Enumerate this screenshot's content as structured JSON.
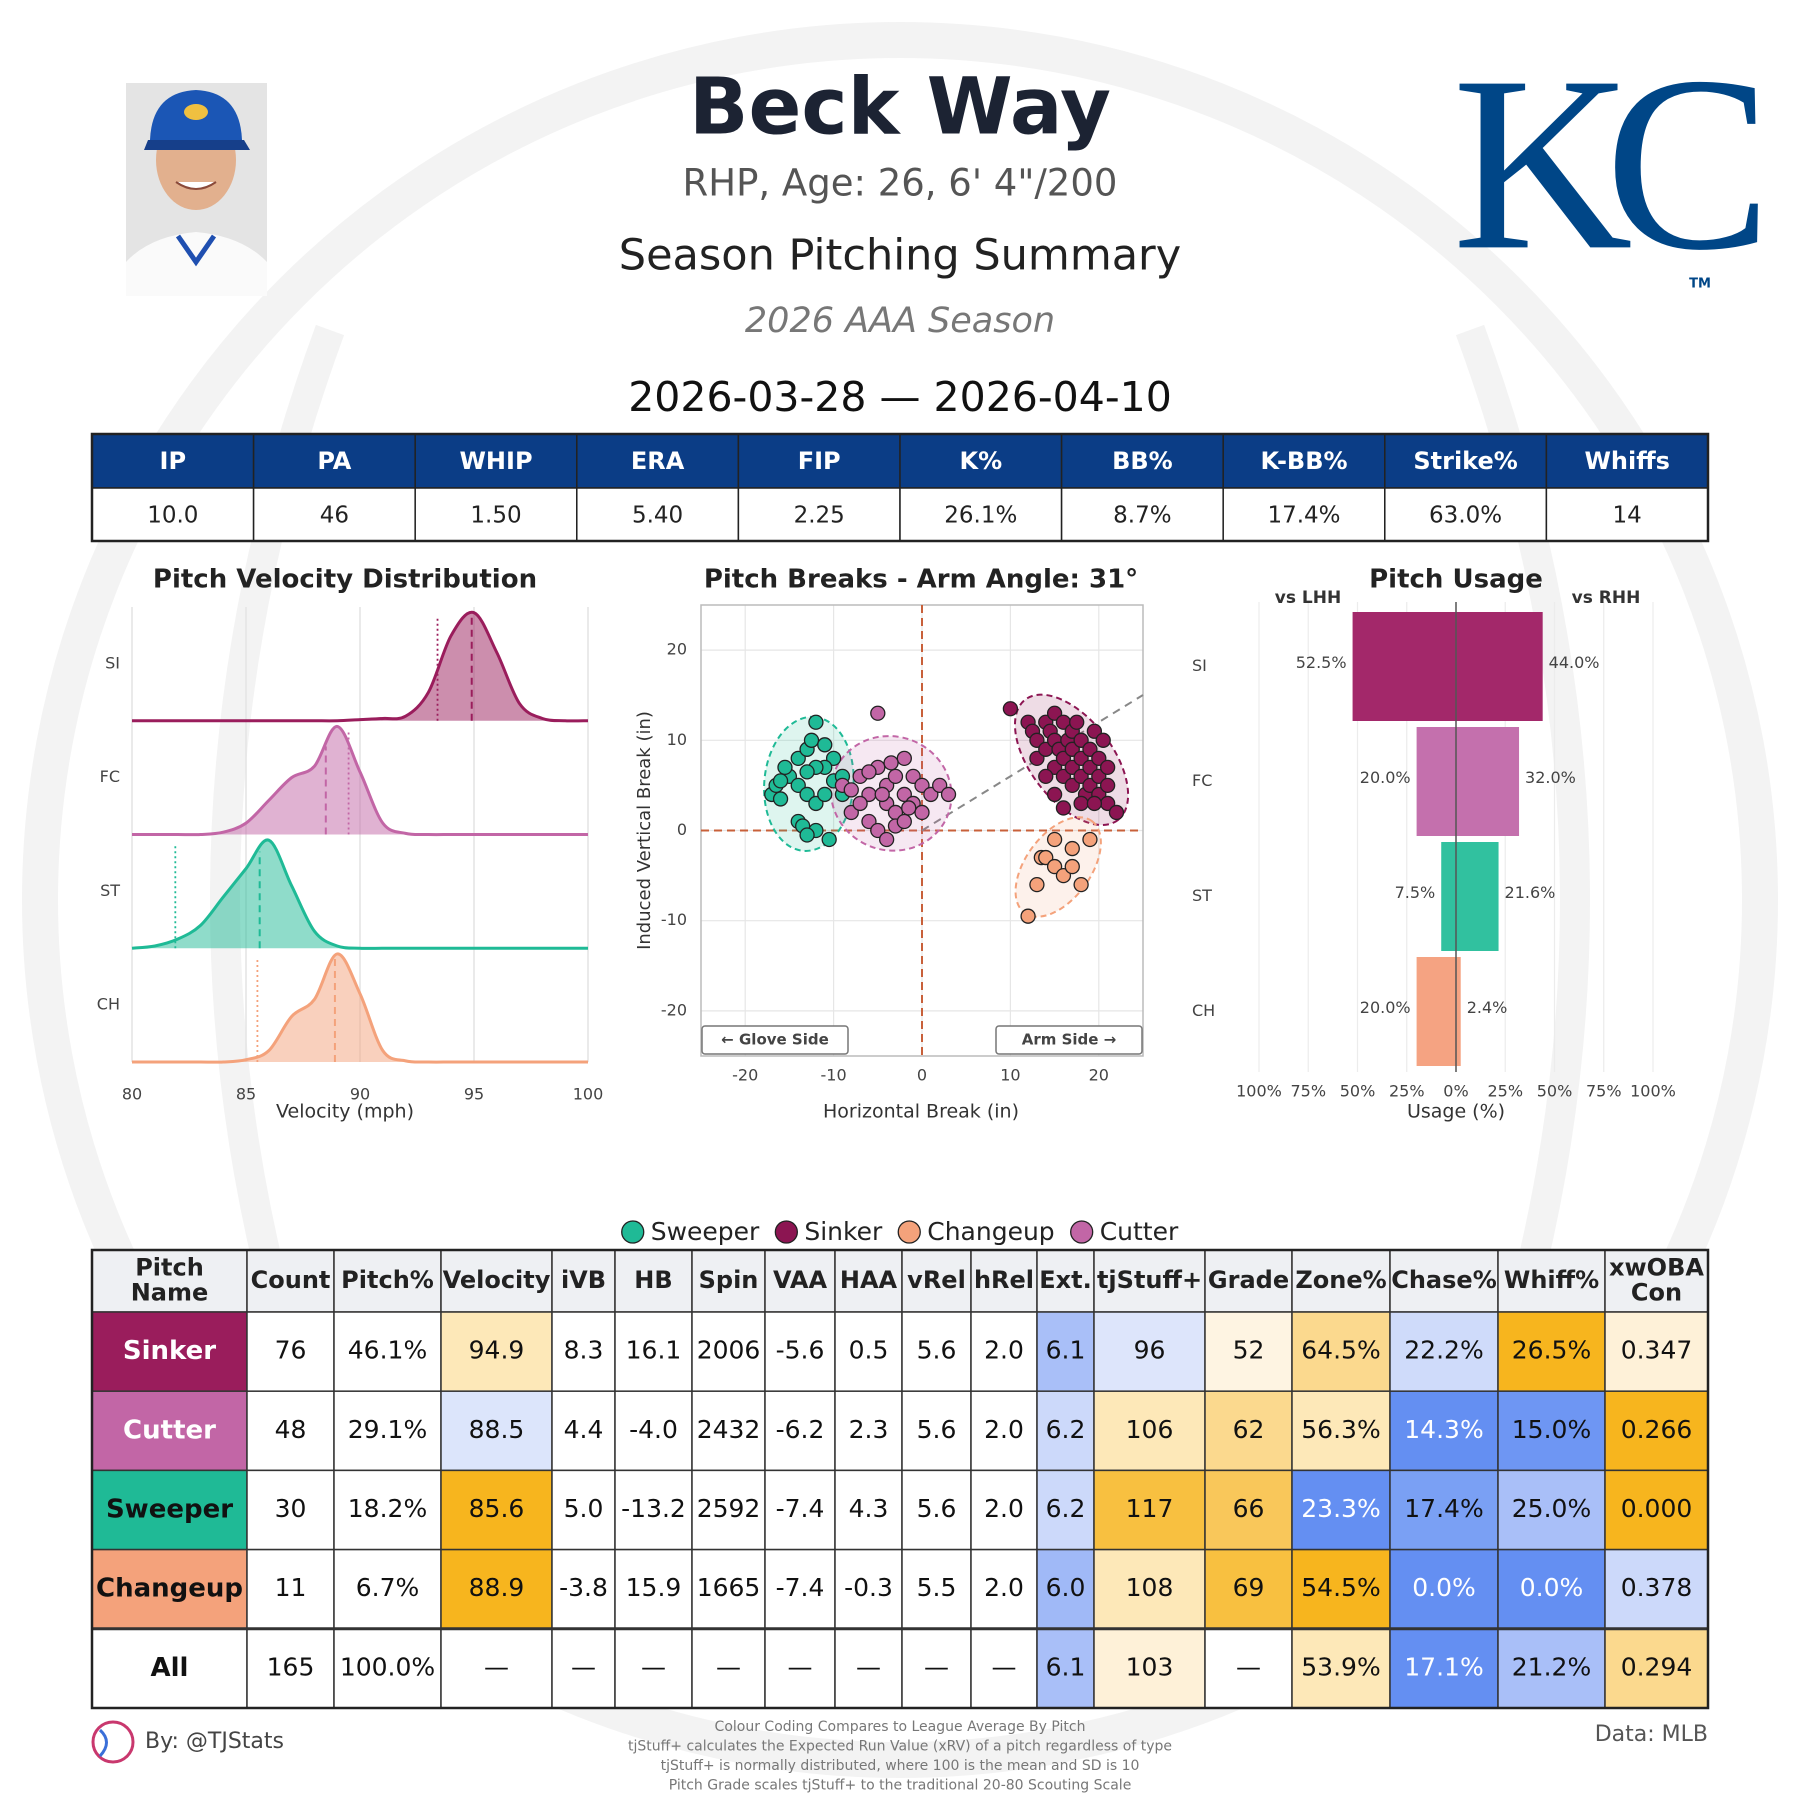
{
  "header": {
    "name": "Beck Way",
    "bio": "RHP, Age: 26, 6' 4\"/200",
    "title": "Season Pitching Summary",
    "season": "2026 AAA Season",
    "dates": "2026-03-28 — 2026-04-10",
    "logo": "KC",
    "logo_mark": "TM"
  },
  "stats_table": {
    "headers": [
      "IP",
      "PA",
      "WHIP",
      "ERA",
      "FIP",
      "K%",
      "BB%",
      "K-BB%",
      "Strike%",
      "Whiffs"
    ],
    "values": [
      "10.0",
      "46",
      "1.50",
      "5.40",
      "2.25",
      "26.1%",
      "8.7%",
      "17.4%",
      "63.0%",
      "14"
    ]
  },
  "chart_data": [
    {
      "type": "ridgeline",
      "title": "Pitch Velocity Distribution",
      "xlabel": "Velocity (mph)",
      "xlim": [
        80,
        100
      ],
      "xticks": [
        80,
        85,
        90,
        95,
        100
      ],
      "grid": true,
      "x": [
        80,
        81,
        82,
        83,
        84,
        85,
        86,
        87,
        88,
        89,
        90,
        91,
        92,
        93,
        94,
        95,
        96,
        97,
        98,
        99,
        100
      ],
      "series": [
        {
          "name": "SI",
          "color": "#9a1d5c",
          "mean": 94.9,
          "reference": 93.4,
          "values": [
            0,
            0,
            0,
            0,
            0,
            0,
            0,
            0,
            0,
            0,
            0.01,
            0.02,
            0.04,
            0.25,
            0.75,
            0.95,
            0.6,
            0.15,
            0.02,
            0,
            0
          ]
        },
        {
          "name": "FC",
          "color": "#c266a6",
          "mean": 88.5,
          "reference": 89.5,
          "values": [
            0,
            0,
            0,
            0,
            0.02,
            0.1,
            0.3,
            0.5,
            0.6,
            0.95,
            0.55,
            0.1,
            0.01,
            0,
            0,
            0,
            0,
            0,
            0,
            0,
            0
          ]
        },
        {
          "name": "ST",
          "color": "#1fba96",
          "mean": 85.6,
          "reference": 81.9,
          "values": [
            0,
            0.02,
            0.08,
            0.2,
            0.45,
            0.7,
            0.95,
            0.55,
            0.15,
            0.02,
            0,
            0,
            0,
            0,
            0,
            0,
            0,
            0,
            0,
            0,
            0
          ]
        },
        {
          "name": "CH",
          "color": "#f4a27b",
          "mean": 88.9,
          "reference": 85.5,
          "values": [
            0,
            0,
            0,
            0,
            0,
            0.02,
            0.1,
            0.4,
            0.55,
            0.95,
            0.6,
            0.1,
            0.01,
            0,
            0,
            0,
            0,
            0,
            0,
            0,
            0
          ]
        }
      ]
    },
    {
      "type": "scatter",
      "title": "Pitch Breaks - Arm Angle: 31°",
      "xlabel": "Horizontal Break (in)",
      "ylabel": "Induced Vertical Break (in)",
      "arm_angle": 31,
      "xlim": [
        -25,
        25
      ],
      "ylim": [
        -25,
        25
      ],
      "xticks": [
        -20,
        -10,
        0,
        10,
        20
      ],
      "yticks": [
        -20,
        -10,
        0,
        10,
        20
      ],
      "grid": true,
      "annotations": [
        "← Glove Side",
        "Arm Side →"
      ],
      "series": [
        {
          "name": "Sweeper",
          "color": "#1fba96",
          "x": [
            -17,
            -16,
            -16.5,
            -15,
            -15.5,
            -14,
            -13,
            -12,
            -12.5,
            -11,
            -10,
            -11,
            -12,
            -13,
            -14,
            -13,
            -12,
            -11,
            -10,
            -9,
            -14,
            -13.5,
            -12,
            -10.5,
            -9,
            -16,
            -13
          ],
          "y": [
            4,
            3.5,
            5,
            6,
            7,
            8,
            9,
            12,
            10,
            9.5,
            8,
            7,
            7,
            6.5,
            5,
            4,
            3,
            4,
            5.5,
            6,
            1,
            0.5,
            0,
            -1,
            4,
            5.5,
            -0.5
          ]
        },
        {
          "name": "Sinker",
          "color": "#8c1552",
          "x": [
            10,
            12,
            12.5,
            13,
            13,
            14,
            14,
            14.5,
            15,
            15,
            15,
            15.5,
            16,
            16,
            16,
            16.5,
            17,
            17,
            17,
            17,
            17.5,
            18,
            18,
            18,
            18.5,
            19,
            19,
            19,
            19.5,
            20,
            20,
            20,
            20.5,
            21,
            21,
            22,
            18,
            15,
            14,
            16,
            19.5,
            21
          ],
          "y": [
            13.5,
            12,
            11,
            10,
            8,
            12,
            9,
            11,
            13,
            10,
            7,
            9,
            12,
            8,
            6,
            10,
            11,
            9,
            7,
            5,
            12,
            10,
            8,
            6,
            4,
            9,
            7,
            5,
            11,
            8,
            6,
            4,
            10,
            7,
            3,
            2,
            3,
            4,
            6,
            2.5,
            3,
            5
          ]
        },
        {
          "name": "Changeup",
          "color": "#f4a27b",
          "x": [
            12,
            13,
            13.5,
            14,
            15,
            15,
            16,
            17,
            17,
            18,
            19
          ],
          "y": [
            -9.5,
            -6,
            -3,
            -3,
            -4,
            -1,
            -5,
            -2,
            -4,
            -6,
            -1
          ]
        },
        {
          "name": "Cutter",
          "color": "#c266a6",
          "x": [
            -5,
            -9,
            -8,
            -7,
            -6,
            -5,
            -4,
            -4,
            -3,
            -3,
            -2,
            -2,
            -1,
            -1,
            0,
            1,
            -6,
            -5,
            -4,
            -3,
            -7,
            -8,
            -2,
            0,
            2,
            3,
            -6,
            -4.5,
            -3.5,
            -1.5
          ],
          "y": [
            13,
            5,
            2,
            6,
            4,
            7,
            5,
            3,
            6,
            2,
            4,
            8,
            3,
            6,
            5,
            4,
            1,
            0,
            -1,
            0.5,
            3,
            4.5,
            1,
            2,
            5,
            4,
            6.5,
            4,
            7.5,
            2.5
          ]
        }
      ]
    },
    {
      "type": "butterfly",
      "title": "Pitch Usage",
      "xlabel": "Usage (%)",
      "categories": [
        "SI",
        "FC",
        "ST",
        "CH"
      ],
      "colors": [
        "#a3286a",
        "#c470ad",
        "#31c19f",
        "#f5a382"
      ],
      "xlim": [
        -100,
        100
      ],
      "xticks": [
        {
          "value": -100,
          "label": "100%"
        },
        {
          "value": -75,
          "label": "75%"
        },
        {
          "value": -50,
          "label": "50%"
        },
        {
          "value": -25,
          "label": "25%"
        },
        {
          "value": 0,
          "label": "0%"
        },
        {
          "value": 25,
          "label": "25%"
        },
        {
          "value": 50,
          "label": "50%"
        },
        {
          "value": 75,
          "label": "75%"
        },
        {
          "value": 100,
          "label": "100%"
        }
      ],
      "series": [
        {
          "name": "vs LHH",
          "values": [
            52.5,
            20.0,
            7.5,
            20.0
          ],
          "value_labels": [
            "52.5%",
            "20.0%",
            "7.5%",
            "20.0%"
          ]
        },
        {
          "name": "vs RHH",
          "values": [
            44.0,
            32.0,
            21.6,
            2.4
          ],
          "value_labels": [
            "44.0%",
            "32.0%",
            "21.6%",
            "2.4%"
          ]
        }
      ]
    }
  ],
  "pitch_table": {
    "headers": [
      "Pitch Name",
      "Count",
      "Pitch%",
      "Velocity",
      "iVB",
      "HB",
      "Spin",
      "VAA",
      "HAA",
      "vRel",
      "hRel",
      "Ext.",
      "tjStuff+",
      "Grade",
      "Zone%",
      "Chase%",
      "Whiff%",
      "xwOBA Con"
    ],
    "rows": [
      [
        "Sinker",
        "76",
        "46.1%",
        "94.9",
        "8.3",
        "16.1",
        "2006",
        "-5.6",
        "0.5",
        "5.6",
        "2.0",
        "6.1",
        "96",
        "52",
        "64.5%",
        "22.2%",
        "26.5%",
        "0.347"
      ],
      [
        "Cutter",
        "48",
        "29.1%",
        "88.5",
        "4.4",
        "-4.0",
        "2432",
        "-6.2",
        "2.3",
        "5.6",
        "2.0",
        "6.2",
        "106",
        "62",
        "56.3%",
        "14.3%",
        "15.0%",
        "0.266"
      ],
      [
        "Sweeper",
        "30",
        "18.2%",
        "85.6",
        "5.0",
        "-13.2",
        "2592",
        "-7.4",
        "4.3",
        "5.6",
        "2.0",
        "6.2",
        "117",
        "66",
        "23.3%",
        "17.4%",
        "25.0%",
        "0.000"
      ],
      [
        "Changeup",
        "11",
        "6.7%",
        "88.9",
        "-3.8",
        "15.9",
        "1665",
        "-7.4",
        "-0.3",
        "5.5",
        "2.0",
        "6.0",
        "108",
        "69",
        "54.5%",
        "0.0%",
        "0.0%",
        "0.378"
      ],
      [
        "All",
        "165",
        "100.0%",
        "—",
        "—",
        "—",
        "—",
        "—",
        "—",
        "—",
        "—",
        "6.1",
        "103",
        "—",
        "53.9%",
        "17.1%",
        "21.2%",
        "0.294"
      ]
    ],
    "cell_colors": [
      [
        "#9a1d5c",
        null,
        null,
        "#fde8b8",
        null,
        null,
        null,
        null,
        null,
        null,
        null,
        "#a9bff8",
        "#dde5fb",
        "#fef4e2",
        "#fbd98e",
        "#cfdbfa",
        "#f7b51e",
        "#fef1d8"
      ],
      [
        "#c266a6",
        null,
        null,
        "#dce5fb",
        null,
        null,
        null,
        null,
        null,
        null,
        null,
        "#ccd9fa",
        "#fde8b8",
        "#fbd98e",
        "#fde8b8",
        "#648ff2",
        "#6e96f3",
        "#f7b51e"
      ],
      [
        "#1fba96",
        null,
        null,
        "#f7b51e",
        null,
        null,
        null,
        null,
        null,
        null,
        null,
        "#ccd9fa",
        "#f8c040",
        "#f9c75a",
        "#648ff2",
        "#7aa0f4",
        "#a9bff8",
        "#f7b51e"
      ],
      [
        "#f4a27b",
        null,
        null,
        "#f7b51e",
        null,
        null,
        null,
        null,
        null,
        null,
        null,
        "#a0b9f7",
        "#fde8b8",
        "#f8c040",
        "#f7b51e",
        "#648ff2",
        "#648ff2",
        "#ccd9fa"
      ],
      [
        null,
        null,
        null,
        null,
        null,
        null,
        null,
        null,
        null,
        null,
        null,
        "#a9bff8",
        "#fef1d8",
        null,
        "#fde8b8",
        "#648ff2",
        "#a9bff8",
        "#fbd98e"
      ]
    ]
  },
  "footer": {
    "credit": "By: @TJStats",
    "source": "Data: MLB",
    "notes": [
      "Colour Coding Compares to League Average By Pitch",
      "tjStuff+ calculates the Expected Run Value (xRV) of a pitch regardless of type",
      "tjStuff+ is normally distributed, where 100 is the mean and SD is 10",
      "Pitch Grade scales tjStuff+ to the traditional 20-80 Scouting Scale"
    ]
  }
}
